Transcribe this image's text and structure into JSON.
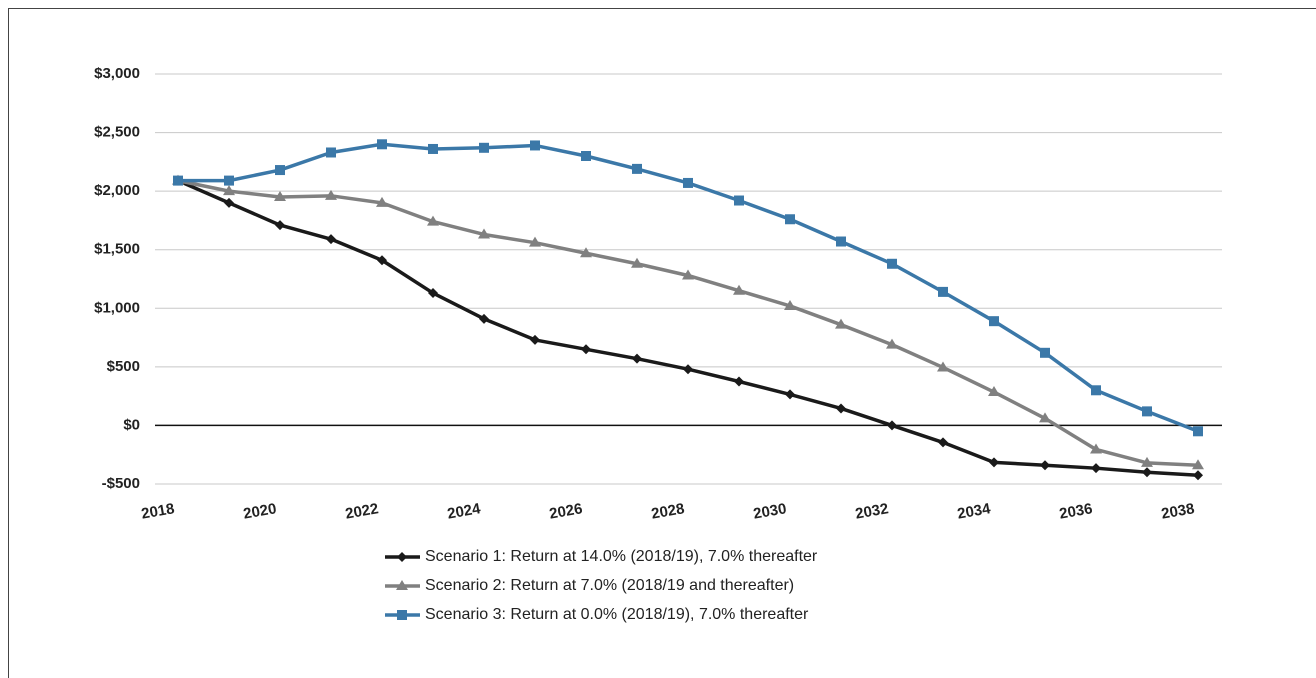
{
  "chart_data": {
    "type": "line",
    "x": [
      2018,
      2019,
      2020,
      2021,
      2022,
      2023,
      2024,
      2025,
      2026,
      2027,
      2028,
      2029,
      2030,
      2031,
      2032,
      2033,
      2034,
      2035,
      2036,
      2037,
      2038
    ],
    "xlim": [
      2018,
      2038
    ],
    "xticks": [
      2018,
      2020,
      2022,
      2024,
      2026,
      2028,
      2030,
      2032,
      2034,
      2036,
      2038
    ],
    "ylim": [
      -500,
      3000
    ],
    "yticks": [
      {
        "value": -500,
        "label": "-$500"
      },
      {
        "value": 0,
        "label": "$0"
      },
      {
        "value": 500,
        "label": "$500"
      },
      {
        "value": 1000,
        "label": "$1,000"
      },
      {
        "value": 1500,
        "label": "$1,500"
      },
      {
        "value": 2000,
        "label": "$2,000"
      },
      {
        "value": 2500,
        "label": "$2,500"
      },
      {
        "value": 3000,
        "label": "$3,000"
      }
    ],
    "grid": true,
    "legend": "bottom",
    "series": [
      {
        "name": "Scenario 1: Return at 14.0% (2018/19), 7.0% thereafter",
        "color": "#1a1a1a",
        "marker": "diamond",
        "values": [
          2090,
          1900,
          1710,
          1590,
          1410,
          1130,
          910,
          730,
          650,
          570,
          480,
          375,
          265,
          145,
          0,
          -145,
          -315,
          -340,
          -365,
          -400,
          -425
        ]
      },
      {
        "name": "Scenario 2: Return at 7.0% (2018/19 and thereafter)",
        "color": "#808080",
        "marker": "triangle",
        "values": [
          2090,
          2000,
          1950,
          1960,
          1900,
          1740,
          1630,
          1560,
          1470,
          1380,
          1280,
          1150,
          1020,
          860,
          690,
          495,
          285,
          60,
          -205,
          -320,
          -340
        ]
      },
      {
        "name": "Scenario 3: Return at 0.0% (2018/19), 7.0% thereafter",
        "color": "#3b78a8",
        "marker": "square",
        "values": [
          2090,
          2090,
          2180,
          2330,
          2400,
          2360,
          2370,
          2390,
          2300,
          2190,
          2070,
          1920,
          1760,
          1570,
          1380,
          1140,
          890,
          620,
          300,
          120,
          -50
        ]
      }
    ]
  }
}
